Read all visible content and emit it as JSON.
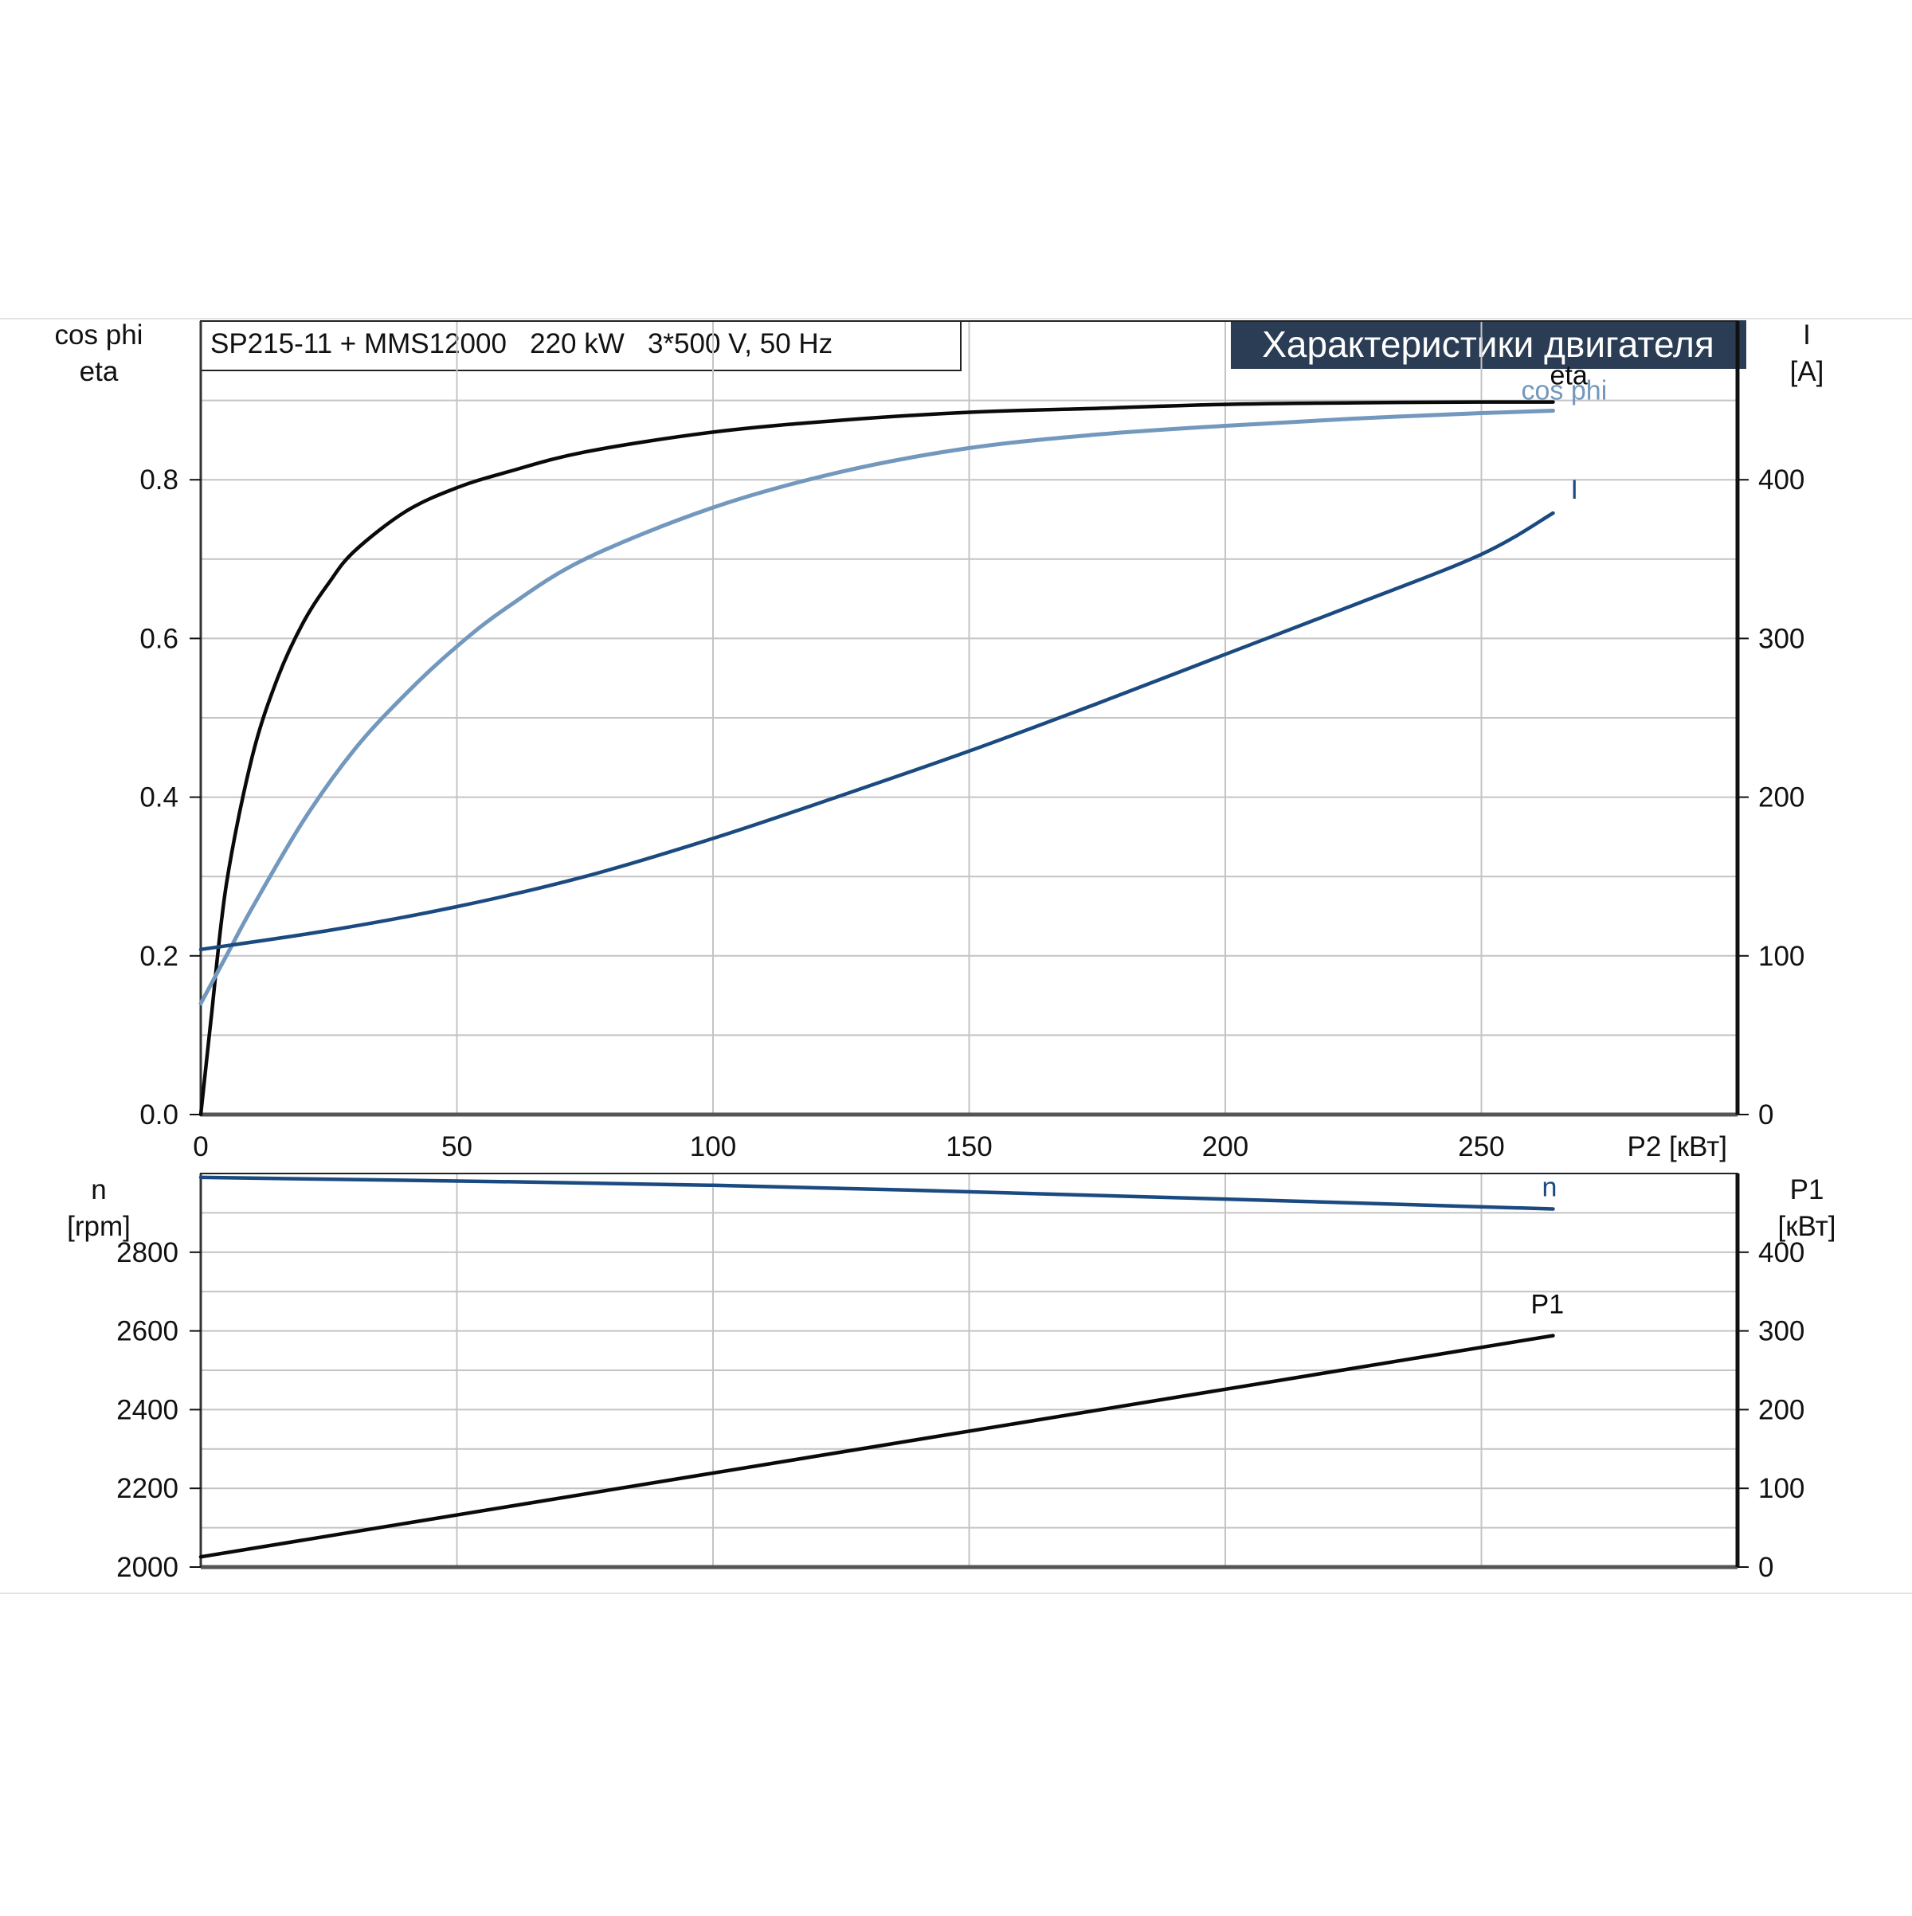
{
  "header": {
    "model_label": "SP215-11 + MMS12000   220 kW   3*500 V, 50 Hz",
    "title": "Характеристики двигателя"
  },
  "colors": {
    "eta": "#0a0a0a",
    "cos_phi": "#7398bd",
    "I": "#1b4a80",
    "n": "#1b4a80",
    "P1": "#0a0a0a",
    "grid": "#c4c4c4",
    "frame": "#222222",
    "title_bg": "#2b3d55"
  },
  "chart_data": [
    {
      "type": "line",
      "xlabel": "P2 [кВт]",
      "xlim": [
        0,
        300
      ],
      "x_ticks": [
        0,
        50,
        100,
        150,
        200,
        250
      ],
      "y_left": {
        "label_lines": [
          "cos phi",
          "eta"
        ],
        "lim": [
          0,
          1.0
        ],
        "ticks": [
          0.0,
          0.2,
          0.4,
          0.6,
          0.8
        ],
        "tick_labels": [
          "0.0",
          "0.2",
          "0.4",
          "0.6",
          "0.8"
        ]
      },
      "y_right": {
        "label_lines": [
          "I",
          "[A]"
        ],
        "lim": [
          0,
          500
        ],
        "ticks": [
          0,
          100,
          200,
          300,
          400
        ],
        "tick_labels": [
          "0",
          "100",
          "200",
          "300",
          "400"
        ]
      },
      "grid": true,
      "series": [
        {
          "name": "eta",
          "axis": "left",
          "x": [
            0,
            2,
            5,
            10,
            15,
            20,
            25,
            30,
            40,
            50,
            60,
            75,
            100,
            125,
            150,
            175,
            200,
            225,
            250,
            264
          ],
          "y": [
            0.0,
            0.12,
            0.29,
            0.45,
            0.55,
            0.62,
            0.67,
            0.71,
            0.76,
            0.79,
            0.81,
            0.835,
            0.86,
            0.875,
            0.885,
            0.89,
            0.895,
            0.897,
            0.898,
            0.898
          ]
        },
        {
          "name": "cos phi",
          "axis": "left",
          "x": [
            0,
            5,
            10,
            20,
            30,
            40,
            50,
            60,
            75,
            100,
            125,
            150,
            175,
            200,
            225,
            250,
            264
          ],
          "y": [
            0.14,
            0.2,
            0.26,
            0.37,
            0.46,
            0.53,
            0.59,
            0.64,
            0.7,
            0.765,
            0.81,
            0.84,
            0.857,
            0.868,
            0.877,
            0.884,
            0.887
          ]
        },
        {
          "name": "I",
          "axis": "right",
          "x": [
            0,
            25,
            50,
            75,
            100,
            125,
            150,
            175,
            200,
            225,
            250,
            264
          ],
          "y": [
            104,
            116,
            131,
            150,
            174,
            201,
            229,
            259,
            290,
            321,
            353,
            379
          ]
        }
      ]
    },
    {
      "type": "line",
      "xlim": [
        0,
        300
      ],
      "x_ticks": [
        0,
        50,
        100,
        150,
        200,
        250
      ],
      "y_left": {
        "label_lines": [
          "n",
          "[rpm]"
        ],
        "lim": [
          2000,
          3000
        ],
        "ticks": [
          2000,
          2200,
          2400,
          2600,
          2800
        ],
        "tick_labels": [
          "2000",
          "2200",
          "2400",
          "2600",
          "2800"
        ]
      },
      "y_right": {
        "label_lines": [
          "P1",
          "[кВт]"
        ],
        "lim": [
          0,
          500
        ],
        "ticks": [
          0,
          100,
          200,
          300,
          400
        ],
        "tick_labels": [
          "0",
          "100",
          "200",
          "300",
          "400"
        ]
      },
      "grid": true,
      "series": [
        {
          "name": "n",
          "axis": "left",
          "x": [
            0,
            100,
            200,
            264
          ],
          "y": [
            2990,
            2970,
            2935,
            2910
          ]
        },
        {
          "name": "P1",
          "axis": "right",
          "x": [
            0,
            264
          ],
          "y": [
            13,
            294
          ]
        }
      ]
    }
  ]
}
